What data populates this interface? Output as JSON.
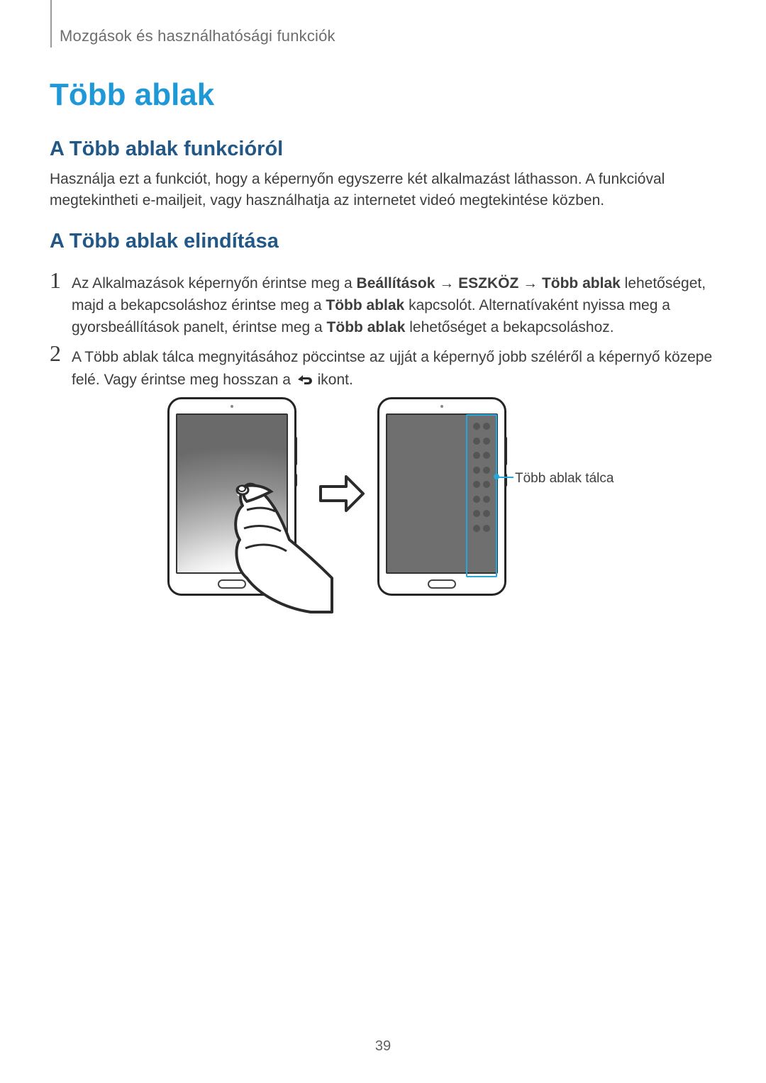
{
  "header": "Mozgások és használhatósági funkciók",
  "title": "Több ablak",
  "section1_heading": "A Több ablak funkcióról",
  "section1_desc": "Használja ezt a funkciót, hogy a képernyőn egyszerre két alkalmazást láthasson. A funkcióval megtekintheti e-mailjeit, vagy használhatja az internetet videó megtekintése közben.",
  "section2_heading": "A Több ablak elindítása",
  "steps": {
    "num1": "1",
    "num2": "2",
    "s1": {
      "pre": "Az Alkalmazások képernyőn érintse meg a ",
      "b1": "Beállítások",
      "arr1": " → ",
      "b2": "ESZKÖZ",
      "arr2": " → ",
      "b3": "Több ablak",
      "mid1": " lehetőséget, majd a bekapcsoláshoz érintse meg a ",
      "b4": "Több ablak",
      "mid2": " kapcsolót. Alternatívaként nyissa meg a gyorsbeállítások panelt, érintse meg a ",
      "b5": "Több ablak",
      "tail": " lehetőséget a bekapcsoláshoz."
    },
    "s2": {
      "pre": "A Több ablak tálca megnyitásához pöccintse az ujját a képernyő jobb széléről a képernyő közepe felé. Vagy érintse meg hosszan a ",
      "tail": " ikont."
    }
  },
  "tray_label": "Több ablak tálca",
  "page_number": "39",
  "colors": {
    "title": "#1e98d7",
    "h2": "#225888",
    "text": "#3d3d3d",
    "accent": "#27a6d9",
    "arrow_big_stroke": "#2b2b2b",
    "arrow_small_fill": "#2aa4de"
  },
  "tray": {
    "rows": 8
  }
}
